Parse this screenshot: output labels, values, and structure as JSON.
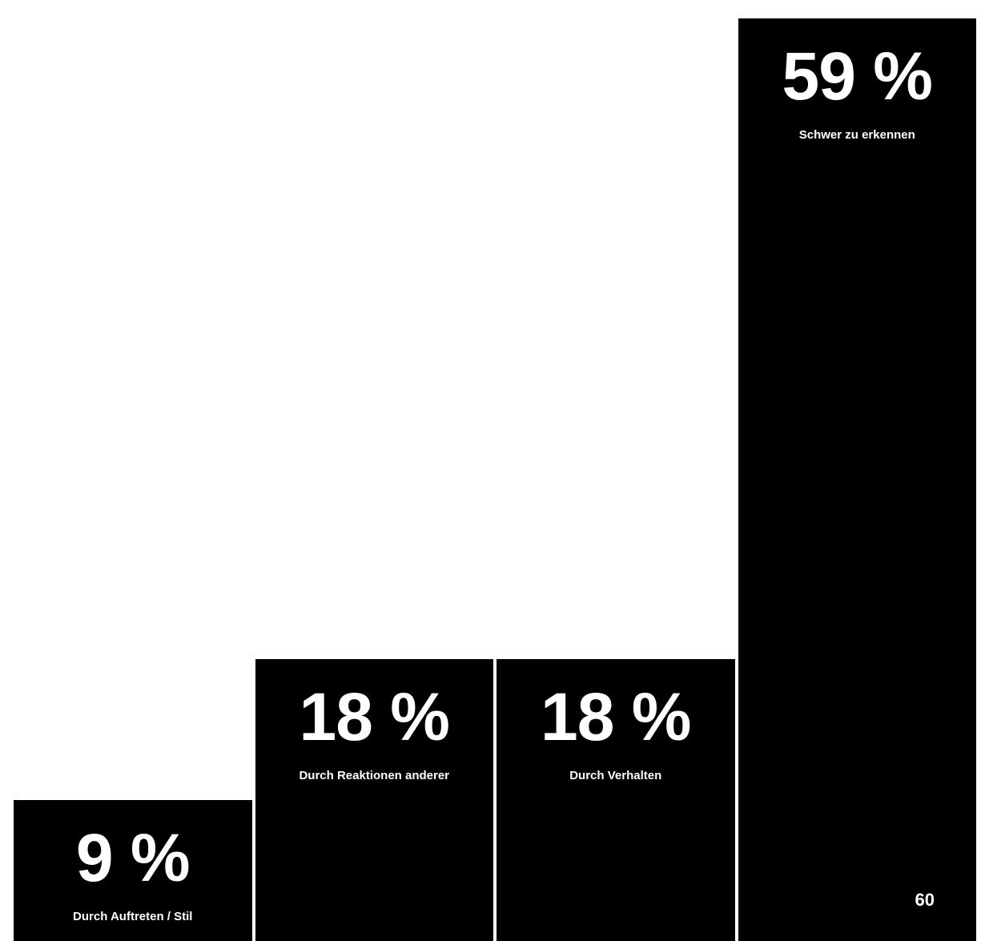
{
  "chart_data": {
    "type": "bar",
    "categories": [
      "Durch Auftreten / Stil",
      "Durch Reaktionen anderer",
      "Durch Verhalten",
      "Schwer zu erkennen"
    ],
    "values": [
      9,
      18,
      18,
      59
    ],
    "value_labels": [
      "9 %",
      "18 %",
      "18 %",
      "59 %"
    ],
    "ylim": [
      0,
      60
    ],
    "grid": false,
    "legend": "none"
  },
  "colors": {
    "bar": "#000000",
    "text": "#ffffff",
    "background": "#ffffff"
  },
  "page_number": "60"
}
